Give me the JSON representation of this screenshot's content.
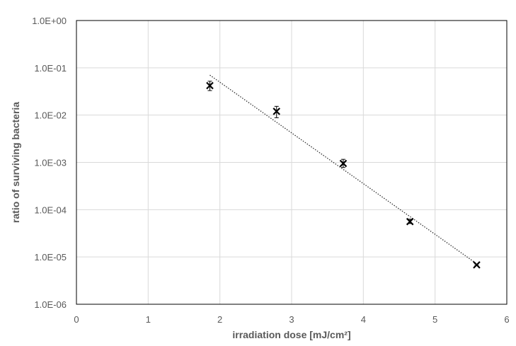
{
  "chart_data": {
    "type": "scatter",
    "title": "",
    "xlabel": "irradiation dose [mJ/cm²]",
    "ylabel": "ratio of surviving bacteria",
    "xlim": [
      0,
      6
    ],
    "ylim": [
      1e-06,
      1
    ],
    "yscale": "log",
    "grid": true,
    "legend": "none",
    "x_ticks": [
      0,
      1,
      2,
      3,
      4,
      5,
      6
    ],
    "x_tick_labels": [
      "0",
      "1",
      "2",
      "3",
      "4",
      "5",
      "6"
    ],
    "y_ticks": [
      1,
      0.1,
      0.01,
      0.001,
      0.0001,
      1e-05,
      1e-06
    ],
    "y_tick_labels": [
      "1.0E+00",
      "1.0E-01",
      "1.0E-02",
      "1.0E-03",
      "1.0E-04",
      "1.0E-05",
      "1.0E-06"
    ],
    "series": [
      {
        "marker": "x",
        "color": "#000000",
        "x": [
          1.86,
          2.79,
          3.72,
          4.65,
          5.58
        ],
        "y": [
          0.042,
          0.012,
          0.00095,
          5.6e-05,
          6.8e-06
        ],
        "y_err_low": [
          0.033,
          0.0088,
          0.00078,
          5.1e-05,
          6.6e-06
        ],
        "y_err_high": [
          0.052,
          0.0153,
          0.00116,
          6.3e-05,
          7.1e-06
        ]
      }
    ],
    "trendline": {
      "type": "exponential",
      "style": "dotted",
      "color": "#333333",
      "x": [
        1.86,
        5.58
      ],
      "y": [
        0.07,
        7.2e-06
      ]
    }
  }
}
